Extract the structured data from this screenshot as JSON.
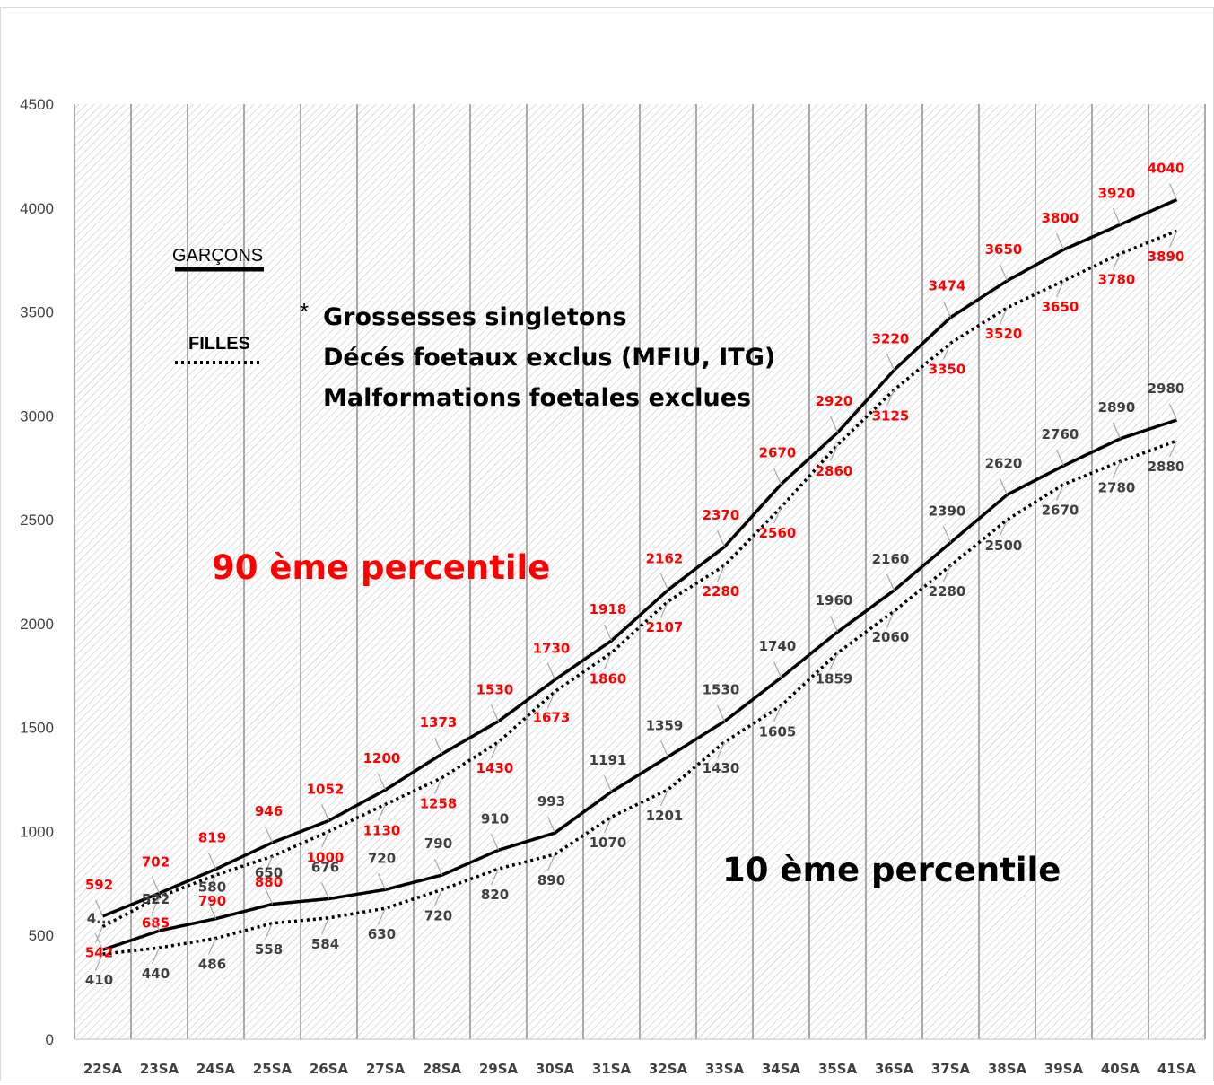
{
  "chart_data": {
    "type": "line",
    "categories": [
      "22SA",
      "23SA",
      "24SA",
      "25SA",
      "26SA",
      "27SA",
      "28SA",
      "29SA",
      "30SA",
      "31SA",
      "32SA",
      "33SA",
      "34SA",
      "35SA",
      "36SA",
      "37SA",
      "38SA",
      "39SA",
      "40SA",
      "41SA"
    ],
    "ylim": [
      0,
      4500
    ],
    "yticks": [
      0,
      500,
      1000,
      1500,
      2000,
      2500,
      3000,
      3500,
      4000,
      4500
    ],
    "grid": "vertical",
    "series": [
      {
        "name": "",
        "group": "p90",
        "sex": "garcons",
        "style": "solid",
        "values": [
          592,
          702,
          819,
          946,
          1052,
          1200,
          1373,
          1530,
          1730,
          1918,
          2162,
          2370,
          2670,
          2920,
          3220,
          3474,
          3650,
          3800,
          3920,
          4040
        ],
        "labels": [
          "592",
          "702",
          "819",
          "946",
          "1052",
          "1200",
          "1373",
          "1530",
          "1730",
          "1918",
          "2162",
          "2370",
          "2670",
          "2920",
          "3220",
          "3474",
          "3650",
          "3800",
          "3920",
          "4040"
        ]
      },
      {
        "name": "",
        "group": "p90",
        "sex": "filles",
        "style": "dotted",
        "values": [
          542,
          685,
          790,
          880,
          1000,
          1130,
          1258,
          1430,
          1673,
          1860,
          2107,
          2280,
          2560,
          2860,
          3125,
          3350,
          3520,
          3650,
          3780,
          3890
        ],
        "labels": [
          "542",
          "685",
          "790",
          "880",
          "1000",
          "1130",
          "1258",
          "1430",
          "1673",
          "1860",
          "2107",
          "2280",
          "2560",
          "2860",
          "3125",
          "3350",
          "3520",
          "3650",
          "3780",
          "3890"
        ]
      },
      {
        "name": "",
        "group": "p10",
        "sex": "garcons",
        "style": "solid",
        "values": [
          430,
          522,
          580,
          650,
          676,
          720,
          790,
          910,
          993,
          1191,
          1359,
          1530,
          1740,
          1960,
          2160,
          2390,
          2620,
          2760,
          2890,
          2980
        ],
        "labels": [
          "4...",
          "522",
          "580",
          "650",
          "676",
          "720",
          "790",
          "910",
          "993",
          "1191",
          "1359",
          "1530",
          "1740",
          "1960",
          "2160",
          "2390",
          "2620",
          "2760",
          "2890",
          "2980"
        ]
      },
      {
        "name": "",
        "group": "p10",
        "sex": "filles",
        "style": "dotted",
        "values": [
          410,
          440,
          486,
          558,
          584,
          630,
          720,
          820,
          890,
          1070,
          1201,
          1430,
          1605,
          1859,
          2060,
          2280,
          2500,
          2670,
          2780,
          2880
        ],
        "labels": [
          "410",
          "440",
          "486",
          "558",
          "584",
          "630",
          "720",
          "820",
          "890",
          "1070",
          "1201",
          "1430",
          "1605",
          "1859",
          "2060",
          "2280",
          "2500",
          "2670",
          "2780",
          "2880"
        ]
      }
    ],
    "legend": {
      "placement": "top-left",
      "items": [
        {
          "label": "GARÇONS",
          "style": "solid"
        },
        {
          "label": "FILLES",
          "style": "dotted"
        }
      ]
    },
    "annotations": {
      "note_star": "*",
      "note_lines": [
        "Grossesses singletons",
        "Décés foetaux exclus (MFIU, ITG)",
        "Malformations foetales exclues"
      ],
      "p90_label": "90 ème percentile",
      "p10_label": "10 ème percentile"
    },
    "colors": {
      "p90_label": "#ff0000",
      "p10_label": "#404040",
      "line": "#000000",
      "grid": "#7f7f7f"
    }
  }
}
